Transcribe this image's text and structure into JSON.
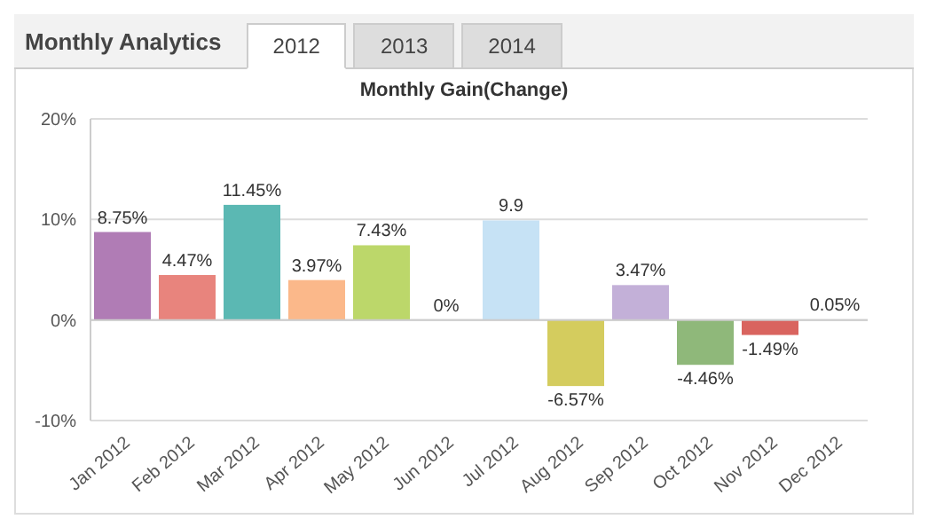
{
  "chart_data": {
    "type": "bar",
    "title": "Monthly Gain(Change)",
    "annotations": [
      "Monthly Analytics",
      "2012",
      "2013",
      "2014"
    ],
    "categories": [
      "Jan 2012",
      "Feb 2012",
      "Mar 2012",
      "Apr 2012",
      "May 2012",
      "Jun 2012",
      "Jul 2012",
      "Aug 2012",
      "Sep 2012",
      "Oct 2012",
      "Nov 2012",
      "Dec 2012"
    ],
    "values": [
      8.75,
      4.47,
      11.45,
      3.97,
      7.43,
      0,
      9.9,
      -6.57,
      3.47,
      -4.46,
      -1.49,
      0.05
    ],
    "value_labels": [
      "8.75%",
      "4.47%",
      "11.45%",
      "3.97%",
      "7.43%",
      "0%",
      "9.9",
      "-6.57%",
      "3.47%",
      "-4.46%",
      "-1.49%",
      "0.05%"
    ],
    "colors": [
      "#b07cb5",
      "#e8847d",
      "#5bb8b3",
      "#fbb88a",
      "#bcd76a",
      "#cccccc",
      "#c6e2f5",
      "#d4cc5e",
      "#c3b0d8",
      "#8fb87a",
      "#d9645f",
      "#4fb3a8"
    ],
    "ylim": [
      -10,
      20
    ],
    "yticks": [
      {
        "value": -10,
        "label": "-10%"
      },
      {
        "value": 0,
        "label": "0%"
      },
      {
        "value": 10,
        "label": "10%"
      },
      {
        "value": 20,
        "label": "20%"
      }
    ],
    "grid": "y"
  }
}
